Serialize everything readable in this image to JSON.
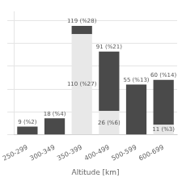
{
  "chart_data": {
    "type": "bar",
    "stacked": true,
    "xlabel": "Altitude [km]",
    "categories": [
      "250-299",
      "300-349",
      "350-399",
      "400-499",
      "500-599",
      "600-699"
    ],
    "series": [
      {
        "color": "#e8e8e8",
        "values": [
          0,
          0,
          110,
          26,
          0,
          11
        ],
        "value_labels": [
          null,
          null,
          "110 (%27)",
          "26 (%6)",
          null,
          "11 (%3)"
        ]
      },
      {
        "color": "#4a4a4a",
        "values": [
          9,
          18,
          9,
          65,
          55,
          49
        ]
      }
    ],
    "annotations": [
      {
        "text": "9 (%2)",
        "x": "250-299",
        "y": 9
      },
      {
        "text": "18 (%4)",
        "x": "300-349",
        "y": 18
      },
      {
        "text": "119 (%28)",
        "x": "350-399",
        "y": 119
      },
      {
        "text": "91 (%21)",
        "x": "400-499",
        "y": 91
      },
      {
        "text": "55 (%13)",
        "x": "500-599",
        "y": 55
      },
      {
        "text": "60 (%14)",
        "x": "600-699",
        "y": 60
      }
    ],
    "ylim": [
      0,
      135
    ],
    "yticks": [
      0,
      25,
      50,
      75,
      100,
      125
    ],
    "grid": true,
    "tick_labels": "x"
  }
}
